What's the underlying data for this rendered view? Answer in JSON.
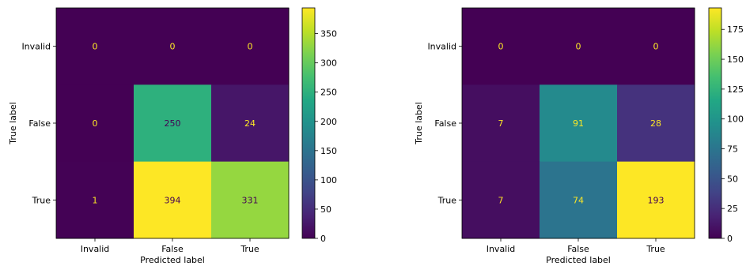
{
  "chart_data": [
    {
      "type": "heatmap",
      "title": "",
      "xlabel": "Predicted label",
      "ylabel": "True label",
      "x_categories": [
        "Invalid",
        "False",
        "True"
      ],
      "y_categories": [
        "Invalid",
        "False",
        "True"
      ],
      "values": [
        [
          0,
          0,
          0
        ],
        [
          0,
          250,
          24
        ],
        [
          1,
          394,
          331
        ]
      ],
      "colormap": "viridis",
      "vmin": 0,
      "vmax": 394,
      "colorbar_ticks": [
        0,
        50,
        100,
        150,
        200,
        250,
        300,
        350
      ],
      "grid": false
    },
    {
      "type": "heatmap",
      "title": "",
      "xlabel": "Predicted label",
      "ylabel": "True label",
      "x_categories": [
        "Invalid",
        "False",
        "True"
      ],
      "y_categories": [
        "Invalid",
        "False",
        "True"
      ],
      "values": [
        [
          0,
          0,
          0
        ],
        [
          7,
          91,
          28
        ],
        [
          7,
          74,
          193
        ]
      ],
      "colormap": "viridis",
      "vmin": 0,
      "vmax": 193,
      "colorbar_ticks": [
        0,
        25,
        50,
        75,
        100,
        125,
        150,
        175
      ],
      "grid": false
    }
  ]
}
